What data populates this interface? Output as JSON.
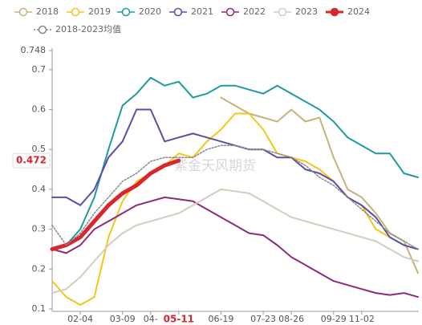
{
  "chart_data": {
    "type": "line",
    "categories": [
      null,
      null,
      "02-04",
      null,
      null,
      "03-09",
      null,
      "04-",
      null,
      "05-11",
      null,
      null,
      "06-19",
      null,
      null,
      "07-23",
      null,
      "08-26",
      null,
      null,
      "09-29",
      null,
      "11-02",
      null,
      null,
      null,
      null
    ],
    "highlight_category_index": 9,
    "highlight_color": "#d9262c",
    "ylim": [
      0.1,
      0.748
    ],
    "yticks": [
      0.1,
      0.2,
      0.3,
      0.4,
      0.5,
      0.6,
      0.7,
      0.748
    ],
    "current_value": 0.472,
    "watermark": "紫金天风期货",
    "series": [
      {
        "name": "2018",
        "color": "#c8b27a",
        "width": 2,
        "values": [
          null,
          null,
          null,
          null,
          null,
          null,
          null,
          null,
          null,
          null,
          null,
          null,
          0.63,
          0.61,
          0.59,
          0.58,
          0.57,
          0.6,
          0.57,
          0.58,
          0.48,
          0.4,
          0.38,
          0.34,
          0.29,
          0.27,
          0.19
        ]
      },
      {
        "name": "2019",
        "color": "#f5c518",
        "width": 2,
        "values": [
          0.17,
          0.13,
          0.11,
          0.13,
          0.28,
          0.37,
          0.42,
          0.44,
          0.46,
          0.49,
          0.48,
          0.52,
          0.55,
          0.59,
          0.59,
          0.55,
          0.49,
          0.48,
          0.47,
          0.45,
          0.42,
          0.38,
          0.36,
          0.3,
          0.28,
          0.26,
          0.25
        ]
      },
      {
        "name": "2020",
        "color": "#1f9aa0",
        "width": 2,
        "values": [
          null,
          0.26,
          0.3,
          0.38,
          0.5,
          0.61,
          0.64,
          0.68,
          0.66,
          0.67,
          0.63,
          0.64,
          0.66,
          0.66,
          0.65,
          0.64,
          0.66,
          0.64,
          0.62,
          0.6,
          0.57,
          0.53,
          0.51,
          0.49,
          0.49,
          0.44,
          0.43
        ]
      },
      {
        "name": "2021",
        "color": "#5b4ea8",
        "width": 2,
        "values": [
          0.38,
          0.38,
          0.36,
          0.4,
          0.48,
          0.52,
          0.6,
          0.6,
          0.52,
          0.53,
          0.54,
          0.53,
          0.52,
          0.51,
          0.5,
          0.5,
          0.48,
          0.48,
          0.45,
          0.44,
          0.42,
          0.38,
          0.36,
          0.33,
          0.28,
          0.26,
          0.25
        ]
      },
      {
        "name": "2022",
        "color": "#8e2a7a",
        "width": 2,
        "values": [
          0.25,
          0.24,
          0.26,
          0.3,
          0.32,
          0.34,
          0.36,
          0.37,
          0.38,
          0.375,
          0.37,
          0.35,
          0.33,
          0.31,
          0.29,
          0.285,
          0.26,
          0.23,
          0.21,
          0.19,
          0.17,
          0.16,
          0.15,
          0.14,
          0.135,
          0.14,
          0.13
        ]
      },
      {
        "name": "2023",
        "color": "#d6cbbd",
        "width": 2,
        "values": [
          0.14,
          0.15,
          0.18,
          0.22,
          0.26,
          0.29,
          0.31,
          0.32,
          0.33,
          0.34,
          0.36,
          0.38,
          0.4,
          0.395,
          0.39,
          0.37,
          0.35,
          0.33,
          0.32,
          0.31,
          0.3,
          0.29,
          0.28,
          0.27,
          0.25,
          0.23,
          0.22
        ]
      },
      {
        "name": "2024",
        "color": "#d9262c",
        "width": 5,
        "values": [
          0.25,
          0.26,
          0.28,
          0.32,
          0.36,
          0.39,
          0.41,
          0.44,
          0.46,
          0.472,
          null,
          null,
          null,
          null,
          null,
          null,
          null,
          null,
          null,
          null,
          null,
          null,
          null,
          null,
          null,
          null,
          null
        ]
      },
      {
        "name": "2018-2023均值",
        "color": "#888888",
        "width": 1.5,
        "dashed": true,
        "values": [
          0.31,
          0.26,
          0.29,
          0.34,
          0.38,
          0.42,
          0.44,
          0.47,
          0.48,
          0.48,
          0.48,
          0.5,
          0.51,
          0.51,
          0.5,
          0.5,
          0.49,
          0.48,
          0.46,
          0.43,
          0.41,
          0.38,
          0.35,
          0.32,
          0.29,
          0.27,
          0.25
        ]
      }
    ]
  }
}
